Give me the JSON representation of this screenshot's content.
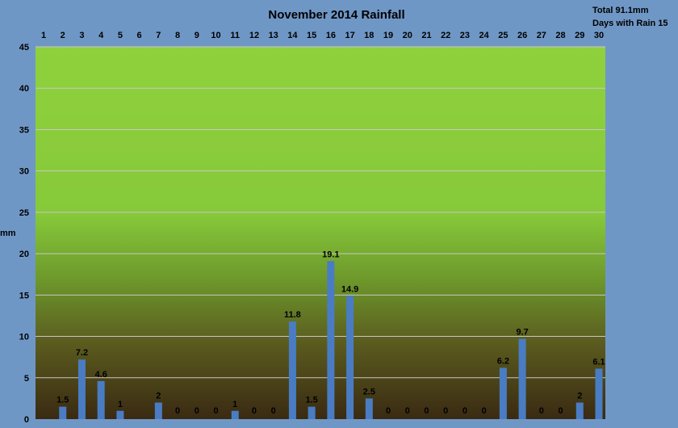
{
  "chart_data": {
    "type": "bar",
    "title": "November 2014 Rainfall",
    "stats": {
      "total": "Total 91.1mm",
      "days_with_rain": "Days with Rain 15"
    },
    "ylabel": "mm",
    "xlabel": "",
    "ylim": [
      0,
      45
    ],
    "yticks": [
      0,
      5,
      10,
      15,
      20,
      25,
      30,
      35,
      40,
      45
    ],
    "categories": [
      "1",
      "2",
      "3",
      "4",
      "5",
      "6",
      "7",
      "8",
      "9",
      "10",
      "11",
      "12",
      "13",
      "14",
      "15",
      "16",
      "17",
      "18",
      "19",
      "20",
      "21",
      "22",
      "23",
      "24",
      "25",
      "26",
      "27",
      "28",
      "29",
      "30"
    ],
    "values": [
      null,
      1.5,
      7.2,
      4.6,
      1,
      null,
      2,
      0,
      0,
      0,
      1,
      0,
      0,
      11.8,
      1.5,
      19.1,
      14.9,
      2.5,
      0,
      0,
      0,
      0,
      0,
      0,
      6.2,
      9.7,
      0,
      0,
      2,
      6.1
    ],
    "x_axis_position": "top",
    "grid": true,
    "colors": {
      "bar": "#4a7cc4",
      "background_top": "#8fd13c",
      "background_bottom": "#3a2a12",
      "outer": "#6f97c6",
      "grid": "#c8c8c8"
    }
  }
}
